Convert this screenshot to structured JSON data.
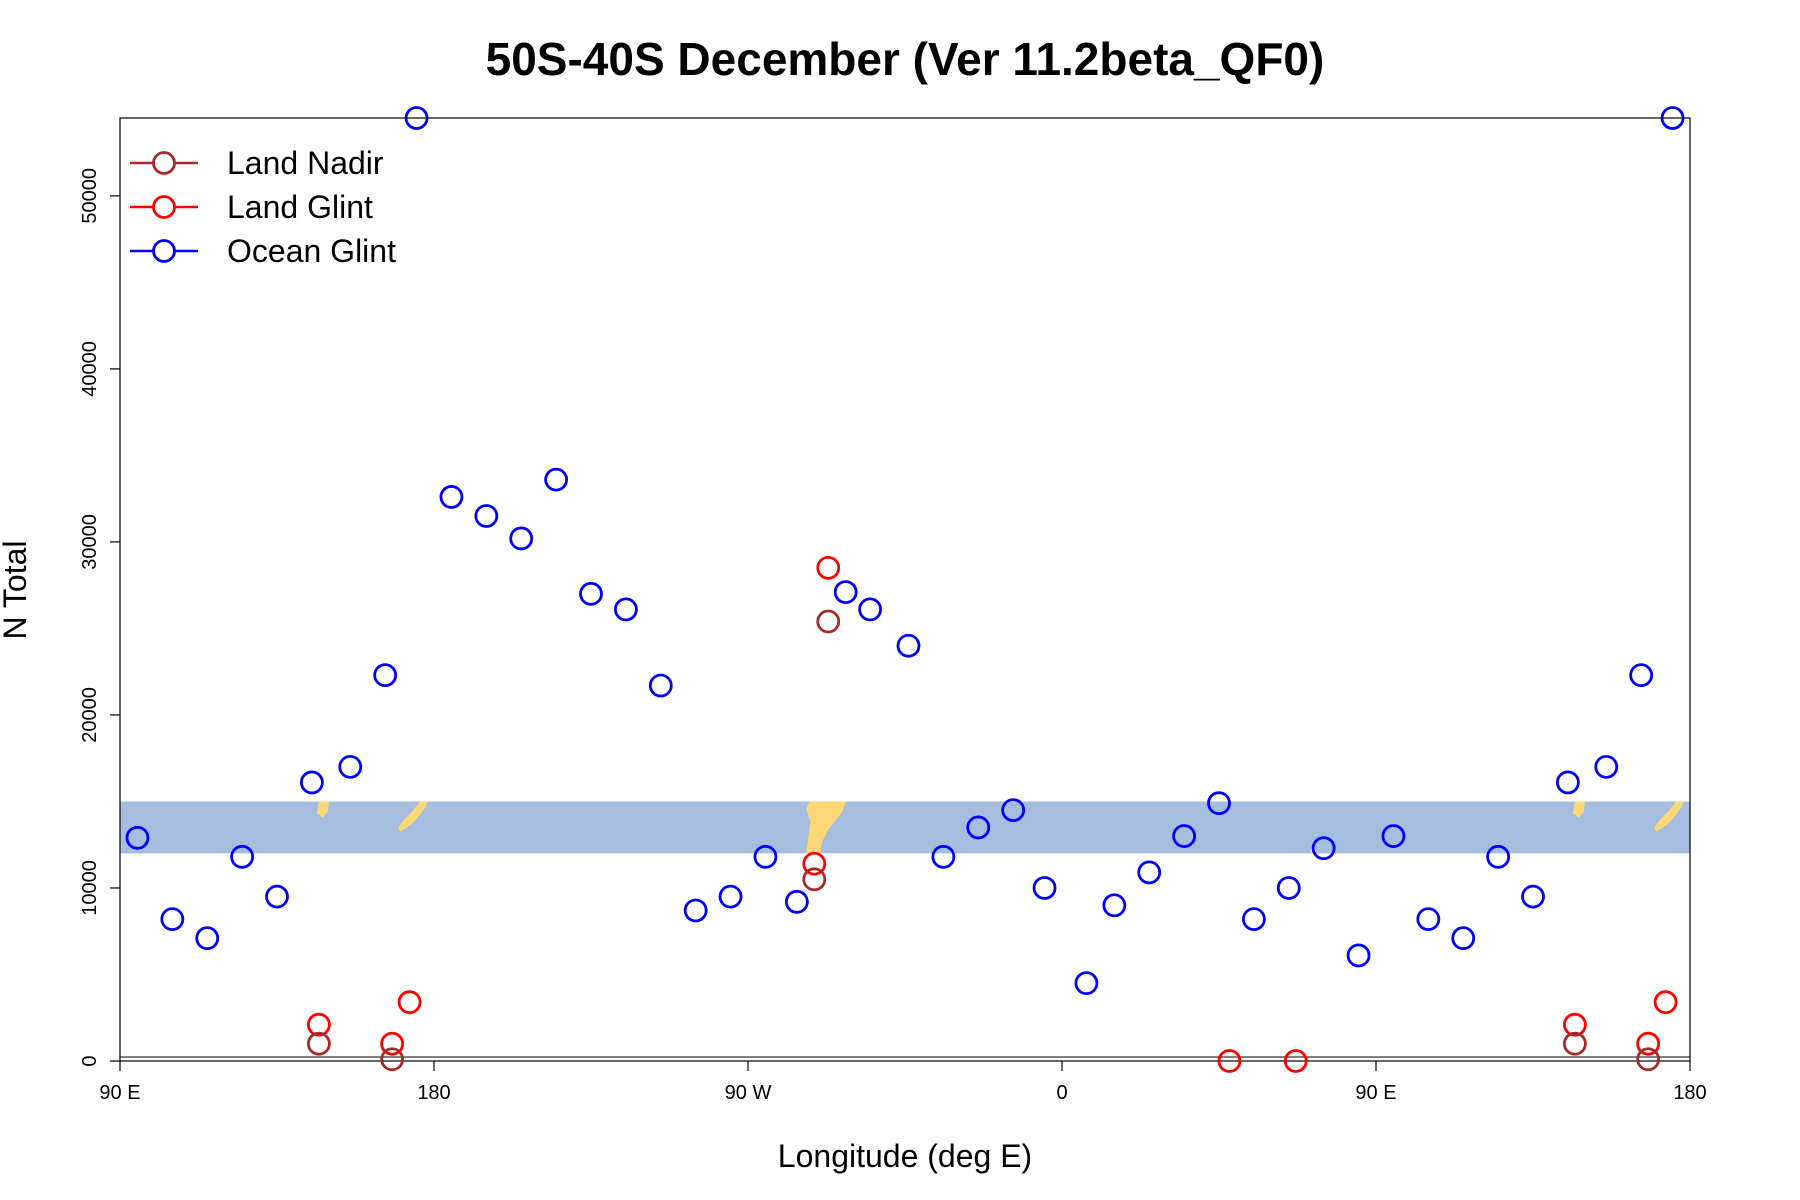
{
  "chart_data": {
    "type": "scatter",
    "title": "50S-40S December (Ver 11.2beta_QF0)",
    "xlabel": "Longitude (deg E)",
    "ylabel": "N Total",
    "xlim": [
      90,
      540
    ],
    "ylim": [
      0,
      54500
    ],
    "x_ticks": [
      {
        "value": 90,
        "label": "90 E"
      },
      {
        "value": 180,
        "label": "180"
      },
      {
        "value": 270,
        "label": "90 W"
      },
      {
        "value": 360,
        "label": "0"
      },
      {
        "value": 450,
        "label": "90 E"
      },
      {
        "value": 540,
        "label": "180"
      }
    ],
    "y_ticks": [
      {
        "value": 0,
        "label": "0"
      },
      {
        "value": 10000,
        "label": "10000"
      },
      {
        "value": 20000,
        "label": "20000"
      },
      {
        "value": 30000,
        "label": "30000"
      },
      {
        "value": 40000,
        "label": "40000"
      },
      {
        "value": 50000,
        "label": "50000"
      }
    ],
    "grid": false,
    "legend_position": "top-left",
    "latitude_band": {
      "ylim": [
        12000,
        15000
      ],
      "color": "#a7bddf",
      "land_color": "#fcd877"
    },
    "series": [
      {
        "name": "Land Nadir",
        "color": "#a52a2a",
        "points": [
          {
            "x": 147,
            "y": 1000
          },
          {
            "x": 168,
            "y": 100
          },
          {
            "x": 289,
            "y": 10500
          },
          {
            "x": 293,
            "y": 25400
          },
          {
            "x": 507,
            "y": 1000
          },
          {
            "x": 528,
            "y": 100
          }
        ]
      },
      {
        "name": "Land Glint",
        "color": "#ff0000",
        "points": [
          {
            "x": 147,
            "y": 2100
          },
          {
            "x": 168,
            "y": 1000
          },
          {
            "x": 173,
            "y": 3400
          },
          {
            "x": 289,
            "y": 11400
          },
          {
            "x": 293,
            "y": 28500
          },
          {
            "x": 408,
            "y": 0
          },
          {
            "x": 427,
            "y": 0
          },
          {
            "x": 507,
            "y": 2100
          },
          {
            "x": 528,
            "y": 1000
          },
          {
            "x": 533,
            "y": 3400
          }
        ]
      },
      {
        "name": "Ocean Glint",
        "color": "#0000ff",
        "points": [
          {
            "x": 95,
            "y": 12900
          },
          {
            "x": 105,
            "y": 8200
          },
          {
            "x": 115,
            "y": 7100
          },
          {
            "x": 125,
            "y": 11800
          },
          {
            "x": 135,
            "y": 9500
          },
          {
            "x": 145,
            "y": 16100
          },
          {
            "x": 156,
            "y": 17000
          },
          {
            "x": 166,
            "y": 22300
          },
          {
            "x": 175,
            "y": 54500
          },
          {
            "x": 185,
            "y": 32600
          },
          {
            "x": 195,
            "y": 31500
          },
          {
            "x": 205,
            "y": 30200
          },
          {
            "x": 215,
            "y": 33600
          },
          {
            "x": 225,
            "y": 27000
          },
          {
            "x": 235,
            "y": 26100
          },
          {
            "x": 245,
            "y": 21700
          },
          {
            "x": 255,
            "y": 8700
          },
          {
            "x": 265,
            "y": 9500
          },
          {
            "x": 275,
            "y": 11800
          },
          {
            "x": 284,
            "y": 9200
          },
          {
            "x": 298,
            "y": 27100
          },
          {
            "x": 305,
            "y": 26100
          },
          {
            "x": 316,
            "y": 24000
          },
          {
            "x": 326,
            "y": 11800
          },
          {
            "x": 336,
            "y": 13500
          },
          {
            "x": 346,
            "y": 14500
          },
          {
            "x": 355,
            "y": 10000
          },
          {
            "x": 367,
            "y": 4500
          },
          {
            "x": 375,
            "y": 9000
          },
          {
            "x": 385,
            "y": 10900
          },
          {
            "x": 395,
            "y": 13000
          },
          {
            "x": 405,
            "y": 14900
          },
          {
            "x": 415,
            "y": 8200
          },
          {
            "x": 425,
            "y": 10000
          },
          {
            "x": 435,
            "y": 12300
          },
          {
            "x": 445,
            "y": 6100
          },
          {
            "x": 455,
            "y": 13000
          },
          {
            "x": 465,
            "y": 8200
          },
          {
            "x": 475,
            "y": 7100
          },
          {
            "x": 485,
            "y": 11800
          },
          {
            "x": 495,
            "y": 9500
          },
          {
            "x": 505,
            "y": 16100
          },
          {
            "x": 516,
            "y": 17000
          },
          {
            "x": 526,
            "y": 22300
          },
          {
            "x": 535,
            "y": 54500
          }
        ]
      }
    ]
  }
}
